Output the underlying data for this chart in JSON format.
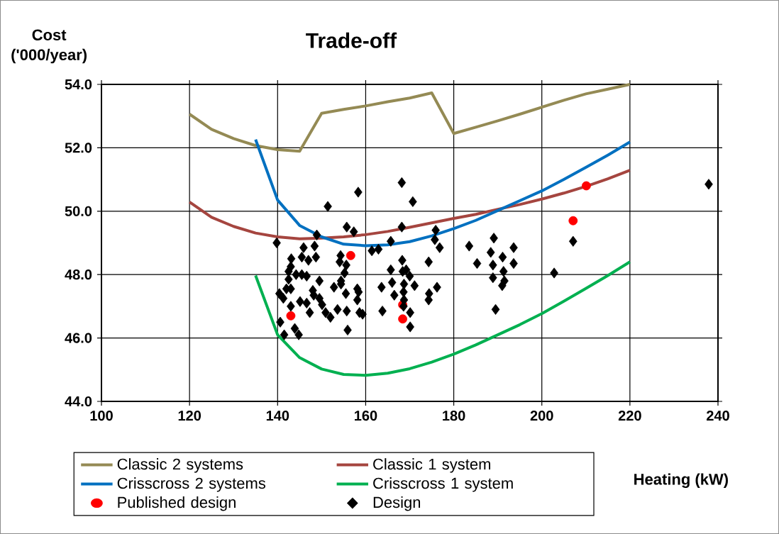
{
  "chart_data": {
    "type": "scatter",
    "title": "Trade-off",
    "xlabel": "Heating (kW)",
    "ylabel": "Cost ('000/year)",
    "xlim": [
      100,
      240
    ],
    "ylim": [
      44,
      54
    ],
    "xticks": [
      100,
      120,
      140,
      160,
      180,
      200,
      220,
      240
    ],
    "yticks": [
      {
        "value": 44,
        "label": "44.0"
      },
      {
        "value": 46,
        "label": "46.0"
      },
      {
        "value": 48,
        "label": "48.0"
      },
      {
        "value": 50,
        "label": "50.0"
      },
      {
        "value": 52,
        "label": "52.0"
      },
      {
        "value": 54,
        "label": "54.0"
      }
    ],
    "grid": true,
    "legend": "bottom",
    "series": [
      {
        "name": "Classic 2 systems",
        "type": "line",
        "color": "#948a54",
        "marker": "none",
        "x": [
          120,
          125,
          130,
          135,
          140,
          145,
          150,
          155,
          160,
          165,
          170,
          175,
          180,
          185,
          190,
          195,
          200,
          205,
          210,
          215,
          220
        ],
        "values": [
          53.06,
          52.58,
          52.29,
          52.07,
          51.94,
          51.89,
          53.09,
          53.21,
          53.32,
          53.45,
          53.57,
          53.73,
          52.45,
          52.65,
          52.85,
          53.06,
          53.28,
          53.5,
          53.7,
          53.85,
          54.0
        ]
      },
      {
        "name": "Classic 1 system",
        "type": "line",
        "color": "#a5453f",
        "marker": "none",
        "x": [
          120,
          125,
          130,
          135,
          140,
          145,
          150,
          155,
          160,
          165,
          170,
          175,
          180,
          185,
          190,
          195,
          200,
          205,
          210,
          215,
          220
        ],
        "values": [
          50.29,
          49.81,
          49.52,
          49.31,
          49.19,
          49.13,
          49.15,
          49.19,
          49.26,
          49.36,
          49.49,
          49.63,
          49.77,
          49.9,
          50.06,
          50.21,
          50.38,
          50.57,
          50.78,
          51.02,
          51.29
        ]
      },
      {
        "name": "Crisscross 2 systems",
        "type": "line",
        "color": "#0070c0",
        "marker": "none",
        "x": [
          135,
          140,
          145,
          150,
          155,
          160,
          165,
          170,
          175,
          180,
          185,
          190,
          195,
          200,
          205,
          210,
          215,
          220
        ],
        "values": [
          52.26,
          50.35,
          49.55,
          49.19,
          48.96,
          48.91,
          48.94,
          49.04,
          49.22,
          49.45,
          49.71,
          50.02,
          50.33,
          50.64,
          51.0,
          51.38,
          51.77,
          52.18
        ]
      },
      {
        "name": "Crisscross 1 system",
        "type": "line",
        "color": "#00b050",
        "marker": "none",
        "x": [
          135,
          140,
          145,
          150,
          155,
          160,
          165,
          170,
          175,
          180,
          185,
          190,
          195,
          200,
          205,
          210,
          215,
          220
        ],
        "values": [
          47.97,
          46.1,
          45.38,
          45.02,
          44.85,
          44.82,
          44.89,
          45.03,
          45.24,
          45.49,
          45.78,
          46.1,
          46.42,
          46.77,
          47.16,
          47.56,
          47.97,
          48.4
        ]
      },
      {
        "name": "Published design",
        "type": "scatter",
        "color": "#ff0000",
        "marker": "circle",
        "x": [
          156.6,
          143.0,
          168.4,
          168.4,
          210.1,
          207.1
        ],
        "values": [
          48.6,
          46.7,
          47.05,
          46.6,
          50.8,
          49.7
        ]
      },
      {
        "name": "Design",
        "color": "#000000",
        "marker": "diamond",
        "x": [
          139.8,
          145.9,
          148.4,
          148.9,
          151.4,
          158.3,
          155.7,
          157.3,
          168.2,
          170.7,
          168.2,
          165.7,
          161.4,
          162.9,
          175.9,
          175.7,
          176.8,
          174.3,
          143.1,
          145.5,
          147.0,
          148.7,
          154.3,
          143.0,
          142.5,
          144.2,
          145.5,
          146.6,
          142.5,
          142.0,
          143.0,
          140.4,
          141.3,
          143.0,
          140.6,
          141.5,
          143.9,
          144.8,
          145.1,
          146.6,
          148.0,
          148.2,
          149.5,
          149.5,
          150.1,
          147.3,
          150.9,
          152.0,
          153.6,
          152.8,
          154.4,
          154.4,
          155.2,
          155.6,
          154.1,
          155.5,
          155.7,
          158.1,
          158.1,
          158.4,
          158.6,
          159.3,
          155.9,
          163.6,
          163.8,
          165.7,
          166.0,
          166.5,
          168.3,
          168.4,
          169.2,
          170.0,
          168.7,
          171.1,
          168.6,
          168.7,
          168.6,
          170.1,
          170.1,
          174.4,
          174.3,
          176.2,
          183.5,
          189.1,
          188.4,
          191.1,
          193.6,
          185.3,
          188.9,
          193.6,
          191.3,
          188.9,
          191.5,
          191.0,
          189.5,
          202.8,
          207.1,
          237.9
        ],
        "values": [
          49.0,
          48.85,
          48.9,
          49.25,
          50.15,
          50.6,
          49.5,
          49.35,
          50.9,
          50.3,
          49.5,
          49.05,
          48.75,
          48.8,
          49.4,
          49.1,
          48.85,
          48.4,
          48.5,
          48.55,
          48.45,
          48.55,
          48.6,
          48.25,
          48.1,
          48.0,
          48.0,
          47.95,
          47.85,
          47.55,
          47.55,
          47.4,
          47.25,
          47.0,
          46.5,
          46.1,
          46.3,
          46.1,
          47.15,
          47.1,
          47.5,
          47.35,
          47.8,
          47.25,
          47.05,
          46.8,
          46.8,
          46.65,
          46.9,
          47.6,
          47.7,
          47.8,
          48.05,
          48.3,
          48.4,
          47.4,
          46.85,
          47.2,
          47.55,
          47.45,
          46.8,
          46.75,
          46.25,
          47.6,
          46.85,
          48.15,
          47.75,
          47.35,
          48.45,
          48.1,
          48.15,
          47.95,
          47.7,
          47.65,
          47.45,
          47.2,
          47.0,
          46.8,
          46.35,
          47.4,
          47.2,
          47.6,
          48.9,
          49.15,
          48.7,
          48.55,
          48.85,
          48.35,
          48.3,
          48.35,
          48.1,
          47.9,
          47.8,
          47.65,
          46.9,
          48.05,
          49.05,
          50.85
        ]
      }
    ]
  }
}
